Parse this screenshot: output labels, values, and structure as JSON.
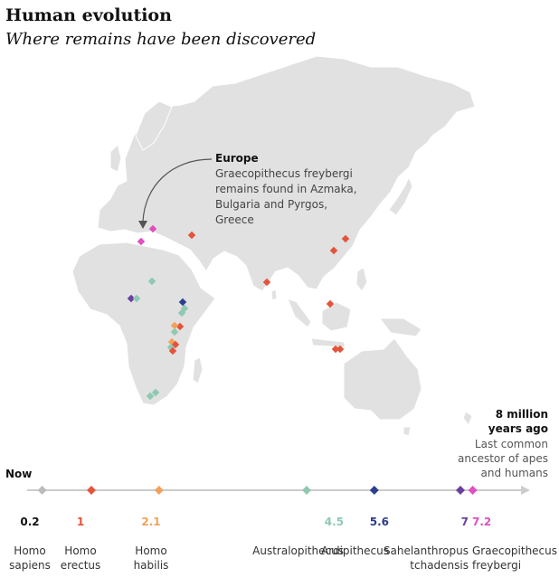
{
  "header": {
    "title": "Human evolution",
    "subtitle": "Where remains have been discovered"
  },
  "annotation": {
    "title": "Europe",
    "body": "Graecopithecus freybergi\nremains found in Azmaka,\nBulgaria and Pyrgos, Greece"
  },
  "timeline": {
    "now_label": "Now",
    "end_label": "8 million\nyears ago",
    "end_sub": "Last common\nancestor of apes\nand humans",
    "species": [
      {
        "value": "0.2",
        "name": "Homo\nsapiens",
        "color": "#bbbbbb",
        "num_color": "#111111"
      },
      {
        "value": "1",
        "name": "Homo\nerectus",
        "color": "#e5533b",
        "num_color": "#e5533b"
      },
      {
        "value": "2.1",
        "name": "Homo\nhabilis",
        "color": "#f0a25a",
        "num_color": "#f0a25a"
      },
      {
        "value": "4.5",
        "name": "Australopithecus",
        "color": "#8fc9b2",
        "num_color": "#8fc9b2"
      },
      {
        "value": "5.6",
        "name": "Ardipithecus",
        "color": "#2c3e8c",
        "num_color": "#2c3e8c"
      },
      {
        "value": "7",
        "name": "Sahelanthropus\ntchadensis",
        "color": "#6a3fa0",
        "num_color": "#6a3fa0"
      },
      {
        "value": "7.2",
        "name": "Graecopithecus\nfreybergi",
        "color": "#e04fc0",
        "num_color": "#e04fc0"
      }
    ]
  },
  "colors": {
    "land": "#e1e1e1",
    "axis": "#cccccc",
    "arrow": "#555555"
  }
}
